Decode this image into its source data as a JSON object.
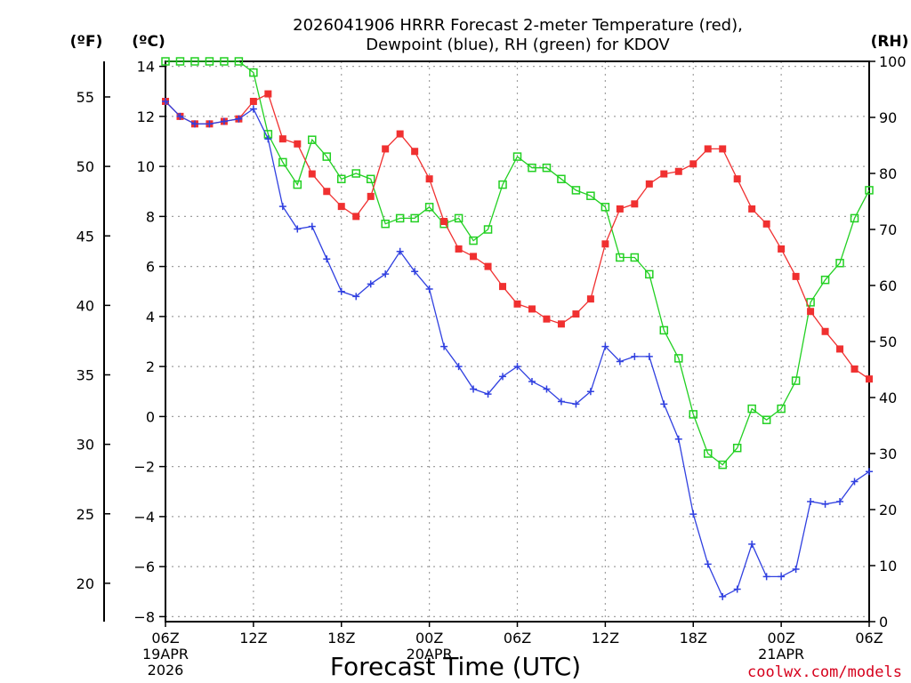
{
  "chart_data": {
    "type": "line",
    "title_line1": "2026041906 HRRR Forecast 2-meter Temperature (red),",
    "title_line2": "Dewpoint (blue), RH (green) for KDOV",
    "unit_left_f": "(ºF)",
    "unit_left_c": "(ºC)",
    "unit_right": "(RH)",
    "xlabel": "Forecast Time (UTC)",
    "credit": "coolwx.com/models",
    "credit_color": "#d6001c",
    "x_range_hours": [
      0,
      48
    ],
    "x_ticks": [
      {
        "hour": 0,
        "lines": [
          "06Z",
          "19APR",
          "2026"
        ]
      },
      {
        "hour": 6,
        "lines": [
          "12Z"
        ]
      },
      {
        "hour": 12,
        "lines": [
          "18Z"
        ]
      },
      {
        "hour": 18,
        "lines": [
          "00Z",
          "20APR"
        ]
      },
      {
        "hour": 24,
        "lines": [
          "06Z"
        ]
      },
      {
        "hour": 30,
        "lines": [
          "12Z"
        ]
      },
      {
        "hour": 36,
        "lines": [
          "18Z"
        ]
      },
      {
        "hour": 42,
        "lines": [
          "00Z",
          "21APR"
        ]
      },
      {
        "hour": 48,
        "lines": [
          "06Z"
        ]
      }
    ],
    "y_celsius_range": [
      -8.2,
      14.2
    ],
    "y_celsius_ticks": [
      -8,
      -6,
      -4,
      -2,
      0,
      2,
      4,
      6,
      8,
      10,
      12,
      14
    ],
    "y_fahrenheit_ticks": [
      20,
      25,
      30,
      35,
      40,
      45,
      50,
      55
    ],
    "y_rh_range": [
      0,
      100
    ],
    "y_rh_ticks": [
      0,
      10,
      20,
      30,
      40,
      50,
      60,
      70,
      80,
      90,
      100
    ],
    "grid": true,
    "series": [
      {
        "name": "Temperature",
        "color": "#f03030",
        "marker": "filled-square",
        "axis": "celsius",
        "values": [
          12.6,
          12.0,
          11.7,
          11.7,
          11.8,
          11.9,
          12.6,
          12.9,
          11.1,
          10.9,
          9.7,
          9.0,
          8.4,
          8.0,
          8.8,
          10.7,
          11.3,
          10.6,
          9.5,
          7.8,
          6.7,
          6.4,
          6.0,
          5.2,
          4.5,
          4.3,
          3.9,
          3.7,
          4.1,
          4.7,
          6.9,
          8.3,
          8.5,
          9.3,
          9.7,
          9.8,
          10.1,
          10.7,
          10.7,
          9.5,
          8.3,
          7.7,
          6.7,
          5.6,
          4.2,
          3.4,
          2.7,
          1.9,
          1.5
        ]
      },
      {
        "name": "Dewpoint",
        "color": "#3040e0",
        "marker": "plus",
        "axis": "celsius",
        "values": [
          12.6,
          12.0,
          11.7,
          11.7,
          11.8,
          11.9,
          12.3,
          11.1,
          8.4,
          7.5,
          7.6,
          6.3,
          5.0,
          4.8,
          5.3,
          5.7,
          6.6,
          5.8,
          5.1,
          2.8,
          2.0,
          1.1,
          0.9,
          1.6,
          2.0,
          1.4,
          1.1,
          0.6,
          0.5,
          1.0,
          2.8,
          2.2,
          2.4,
          2.4,
          0.5,
          -0.9,
          -3.9,
          -5.9,
          -7.2,
          -6.9,
          -5.1,
          -6.4,
          -6.4,
          -6.1,
          -3.4,
          -3.5,
          -3.4,
          -2.6,
          -2.2
        ]
      },
      {
        "name": "RH",
        "color": "#22d022",
        "marker": "open-square",
        "axis": "rh",
        "values": [
          100,
          100,
          100,
          100,
          100,
          100,
          98,
          87,
          82,
          78,
          86,
          83,
          79,
          80,
          79,
          71,
          72,
          72,
          74,
          71,
          72,
          68,
          70,
          78,
          83,
          81,
          81,
          79,
          77,
          76,
          74,
          65,
          65,
          62,
          52,
          47,
          37,
          30,
          28,
          31,
          38,
          36,
          38,
          43,
          57,
          61,
          64,
          72,
          77
        ]
      }
    ]
  }
}
